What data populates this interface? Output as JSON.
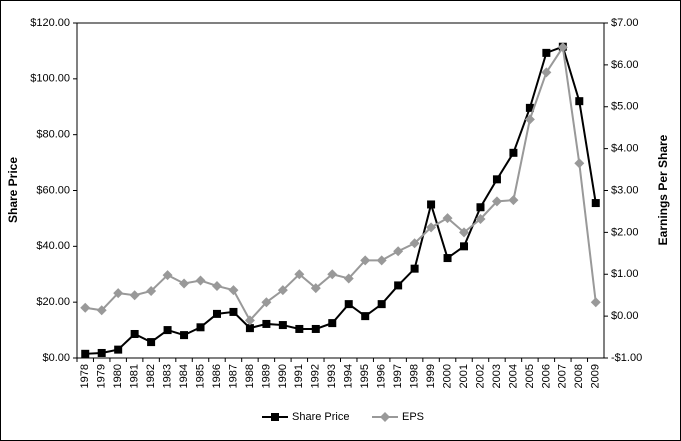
{
  "chart_data": {
    "type": "line",
    "y_label": "Share Price",
    "y2_label": "Earnings Per Share",
    "categories": [
      "1978",
      "1979",
      "1980",
      "1981",
      "1982",
      "1983",
      "1984",
      "1985",
      "1986",
      "1987",
      "1988",
      "1989",
      "1990",
      "1991",
      "1992",
      "1993",
      "1994",
      "1995",
      "1996",
      "1997",
      "1998",
      "1999",
      "2000",
      "2001",
      "2002",
      "2003",
      "2004",
      "2005",
      "2006",
      "2007",
      "2008",
      "2009"
    ],
    "series": [
      {
        "name": "Share Price",
        "color": "#000000",
        "marker": "square",
        "values": [
          1.5,
          1.8,
          3,
          8.6,
          5.7,
          10,
          8.2,
          11,
          15.8,
          16.5,
          10.7,
          12.2,
          11.8,
          10.4,
          10.4,
          12.5,
          19.3,
          15,
          19.3,
          26,
          32,
          55,
          35.8,
          40,
          54,
          64,
          73.5,
          89.6,
          109.3,
          111.5,
          92,
          55.5
        ]
      },
      {
        "name": "EPS",
        "color": "#999999",
        "marker": "diamond",
        "axis": "y2",
        "values": [
          0.2,
          0.14,
          0.55,
          0.5,
          0.6,
          0.98,
          0.78,
          0.85,
          0.72,
          0.62,
          -0.1,
          0.33,
          0.62,
          1.0,
          0.67,
          1.0,
          0.9,
          1.33,
          1.33,
          1.55,
          1.74,
          2.12,
          2.34,
          2.0,
          2.32,
          2.74,
          2.77,
          4.7,
          5.82,
          6.42,
          3.65,
          0.33
        ]
      }
    ],
    "ylim": [
      0,
      120
    ],
    "yticks": [
      {
        "value": 0,
        "label": "$0.00"
      },
      {
        "value": 20,
        "label": "$20.00"
      },
      {
        "value": 40,
        "label": "$40.00"
      },
      {
        "value": 60,
        "label": "$60.00"
      },
      {
        "value": 80,
        "label": "$80.00"
      },
      {
        "value": 100,
        "label": "$100.00"
      },
      {
        "value": 120,
        "label": "$120.00"
      }
    ],
    "y2lim": [
      -1,
      7
    ],
    "y2ticks": [
      {
        "value": -1,
        "label": "-$1.00"
      },
      {
        "value": 0,
        "label": "$0.00"
      },
      {
        "value": 1,
        "label": "$1.00"
      },
      {
        "value": 2,
        "label": "$2.00"
      },
      {
        "value": 3,
        "label": "$3.00"
      },
      {
        "value": 4,
        "label": "$4.00"
      },
      {
        "value": 5,
        "label": "$5.00"
      },
      {
        "value": 6,
        "label": "$6.00"
      },
      {
        "value": 7,
        "label": "$7.00"
      }
    ],
    "legend": "bottom"
  }
}
